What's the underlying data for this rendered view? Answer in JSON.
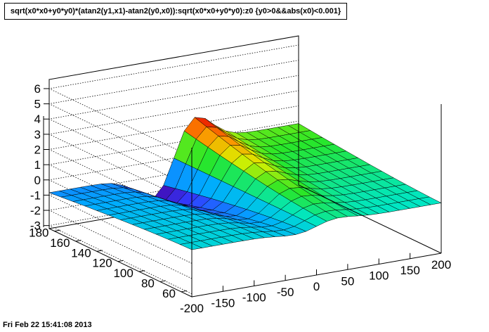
{
  "title": "sqrt(x0*x0+y0*y0)*(atan2(y1,x1)-atan2(y0,x0)):sqrt(x0*x0+y0*y0):z0 {y0>0&&abs(x0)<0.001}",
  "timestamp": "Fri Feb 22 15:41:08 2013",
  "chart_data": {
    "type": "surface",
    "title": "sqrt(x0*x0+y0*y0)*(atan2(y1,x1)-atan2(y0,x0)):sqrt(x0*x0+y0*y0):z0 {y0>0&&abs(x0)<0.001}",
    "xlabel": "",
    "ylabel": "",
    "zlabel": "",
    "x_ticks": [
      "-200",
      "-150",
      "-100",
      "-50",
      "0",
      "50",
      "100",
      "150",
      "200"
    ],
    "y_ticks": [
      "60",
      "80",
      "100",
      "120",
      "140",
      "160",
      "180"
    ],
    "z_ticks": [
      "-3",
      "-2",
      "-1",
      "0",
      "1",
      "2",
      "3",
      "4",
      "5",
      "6"
    ],
    "xlim": [
      -200,
      200
    ],
    "ylim": [
      50,
      185
    ],
    "zlim": [
      -3.2,
      6.6
    ],
    "x_count": 24,
    "y_count": 12,
    "surface_model": "amplitude(y) * tanh-shaped step across x with a positive peak near x=+20 and a negative trough near x=-20; amplitude grows from ~0.3 at y=50 to ~2.4 at y=185",
    "grid": true,
    "colormap": "rainbow (blue = low, red = high)"
  }
}
